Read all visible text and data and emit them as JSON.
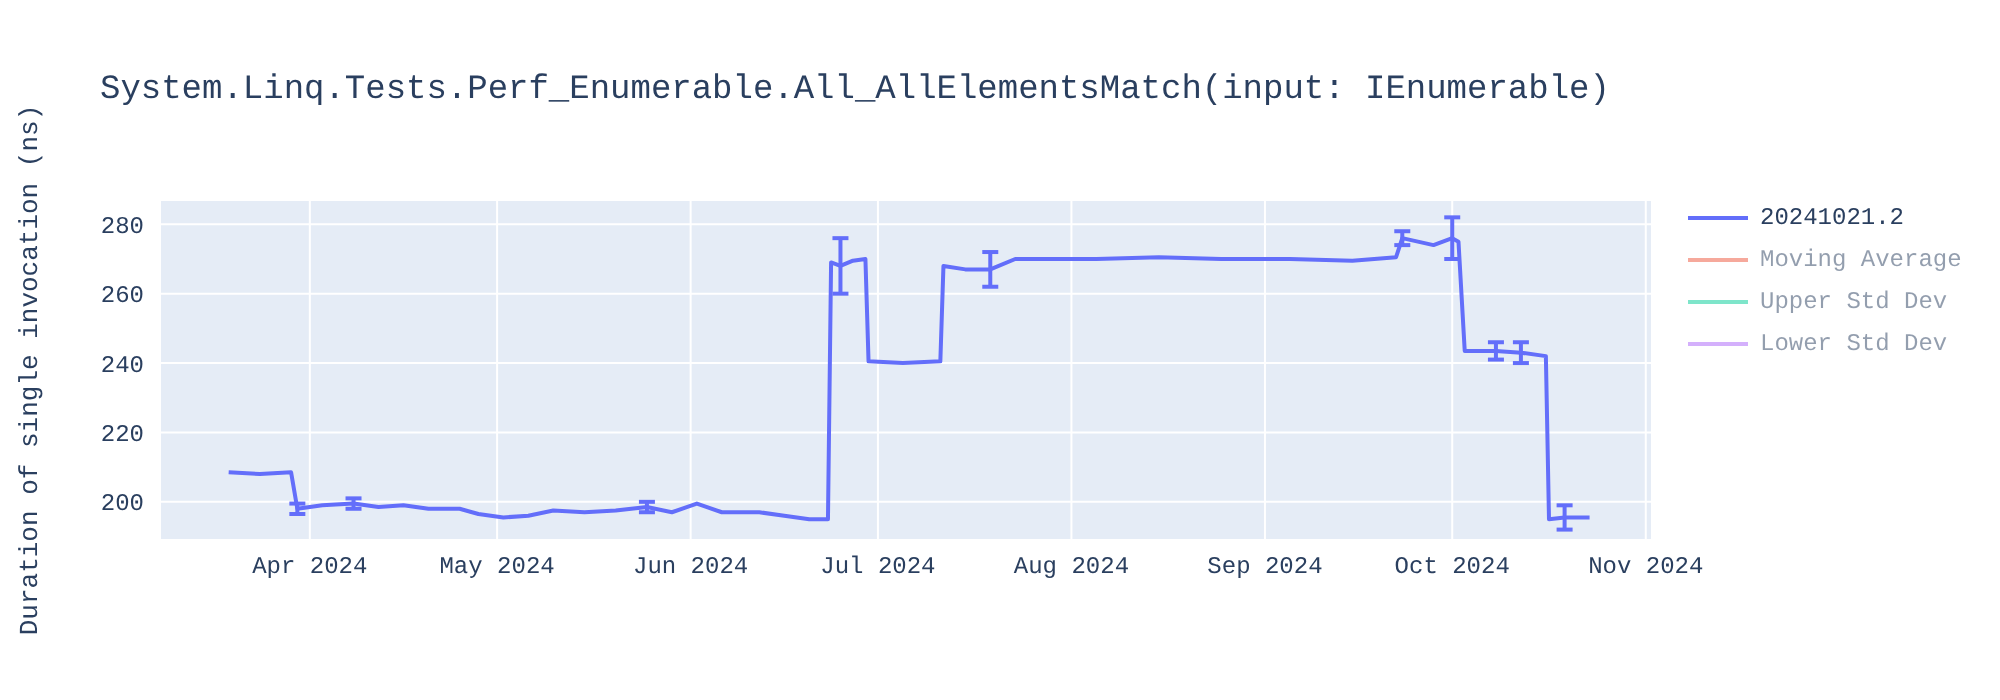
{
  "chart_data": {
    "type": "line",
    "title": "System.Linq.Tests.Perf_Enumerable.All_AllElementsMatch(input: IEnumerable)",
    "ylabel": "Duration of single invocation (ns)",
    "series": [
      {
        "name": "20241021.2",
        "color": "#636efa",
        "x": [
          "2024-03-19",
          "2024-03-24",
          "2024-03-29",
          "2024-03-30",
          "2024-04-03",
          "2024-04-08",
          "2024-04-12",
          "2024-04-16",
          "2024-04-20",
          "2024-04-25",
          "2024-04-28",
          "2024-05-02",
          "2024-05-06",
          "2024-05-10",
          "2024-05-15",
          "2024-05-20",
          "2024-05-25",
          "2024-05-29",
          "2024-06-02",
          "2024-06-06",
          "2024-06-12",
          "2024-06-16",
          "2024-06-20",
          "2024-06-23",
          "2024-06-23T12:00",
          "2024-06-25",
          "2024-06-27",
          "2024-06-29",
          "2024-06-29T12:00",
          "2024-07-05",
          "2024-07-11",
          "2024-07-11T12:00",
          "2024-07-15",
          "2024-07-19",
          "2024-07-23",
          "2024-07-28",
          "2024-08-05",
          "2024-08-15",
          "2024-08-25",
          "2024-09-05",
          "2024-09-15",
          "2024-09-22",
          "2024-09-23",
          "2024-09-28",
          "2024-10-01",
          "2024-10-02",
          "2024-10-03",
          "2024-10-05",
          "2024-10-08",
          "2024-10-12",
          "2024-10-16",
          "2024-10-16T12:00",
          "2024-10-19",
          "2024-10-23"
        ],
        "values": [
          208.5,
          208,
          208.5,
          198,
          199,
          199.5,
          198.5,
          199,
          198,
          198,
          196.5,
          195.5,
          196,
          197.5,
          197,
          197.5,
          198.5,
          197,
          199.5,
          197,
          197,
          196,
          195,
          195,
          269,
          268,
          269.5,
          270,
          240.5,
          240,
          240.5,
          268,
          267,
          267,
          270,
          270,
          270,
          270.5,
          270,
          270,
          269.5,
          270.5,
          276,
          274,
          276,
          275,
          243.5,
          243.5,
          243.5,
          243,
          242,
          195,
          195.5,
          195.5
        ],
        "errors": [
          null,
          null,
          null,
          1.5,
          null,
          1.5,
          null,
          null,
          null,
          null,
          null,
          null,
          null,
          null,
          null,
          null,
          1.5,
          null,
          null,
          null,
          null,
          null,
          null,
          null,
          null,
          8,
          null,
          null,
          null,
          null,
          null,
          null,
          null,
          5,
          null,
          null,
          null,
          null,
          null,
          null,
          null,
          null,
          2,
          null,
          6,
          null,
          null,
          null,
          2.5,
          3,
          null,
          null,
          3.5,
          null
        ]
      },
      {
        "name": "Moving Average",
        "color": "#ef553b",
        "values": [
          null
        ]
      },
      {
        "name": "Upper Std Dev",
        "color": "#00cc96",
        "values": [
          null
        ]
      },
      {
        "name": "Lower Std Dev",
        "color": "#ab63fa",
        "values": [
          null
        ]
      }
    ],
    "xlim": [
      "2024-03-08",
      "2024-11-02"
    ],
    "xticks": [
      {
        "value": "2024-04-01",
        "label": "Apr 2024"
      },
      {
        "value": "2024-05-01",
        "label": "May 2024"
      },
      {
        "value": "2024-06-01",
        "label": "Jun 2024"
      },
      {
        "value": "2024-07-01",
        "label": "Jul 2024"
      },
      {
        "value": "2024-08-01",
        "label": "Aug 2024"
      },
      {
        "value": "2024-09-01",
        "label": "Sep 2024"
      },
      {
        "value": "2024-10-01",
        "label": "Oct 2024"
      },
      {
        "value": "2024-11-01",
        "label": "Nov 2024"
      }
    ],
    "ylim": [
      189,
      287
    ],
    "yticks": [
      200,
      220,
      240,
      260,
      280
    ],
    "grid": true,
    "legend": "right",
    "marker": "none",
    "line_style": "solid"
  }
}
